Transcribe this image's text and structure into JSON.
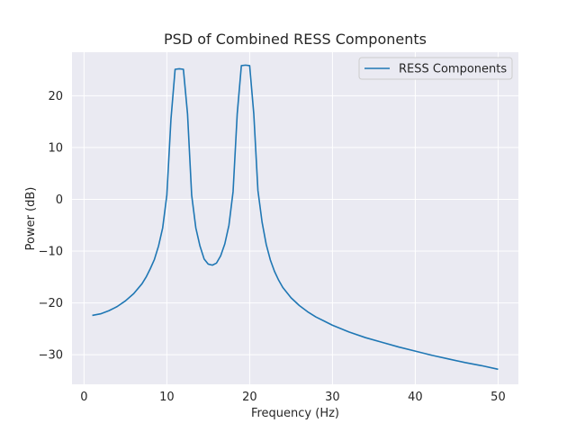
{
  "chart_data": {
    "type": "line",
    "title": "PSD of Combined RESS Components",
    "xlabel": "Frequency (Hz)",
    "ylabel": "Power (dB)",
    "xlim": [
      -1.45,
      52.45
    ],
    "ylim": [
      -35.7,
      28.4
    ],
    "xticks": [
      0,
      10,
      20,
      30,
      40,
      50
    ],
    "yticks": [
      -30,
      -20,
      -10,
      0,
      10,
      20
    ],
    "xtick_labels": [
      "0",
      "10",
      "20",
      "30",
      "40",
      "50"
    ],
    "ytick_labels": [
      "−30",
      "−20",
      "−10",
      "0",
      "10",
      "20"
    ],
    "grid": true,
    "background": "#eaeaf2",
    "legend": {
      "position": "upper right",
      "entries": [
        "RESS Components"
      ]
    },
    "series": [
      {
        "name": "RESS Components",
        "color": "#1f77b4",
        "x": [
          1,
          2,
          3,
          4,
          5,
          6,
          7,
          7.5,
          8,
          8.5,
          9,
          9.5,
          10,
          10.5,
          11,
          11.5,
          12,
          12.5,
          13,
          13.5,
          14,
          14.5,
          15,
          15.5,
          16,
          16.5,
          17,
          17.5,
          18,
          18.5,
          19,
          19.5,
          20,
          20.5,
          21,
          21.5,
          22,
          22.5,
          23,
          23.5,
          24,
          25,
          26,
          27,
          28,
          29,
          30,
          32,
          34,
          36,
          38,
          40,
          42,
          44,
          46,
          48,
          50
        ],
        "values": [
          -22.4,
          -22.1,
          -21.5,
          -20.7,
          -19.6,
          -18.2,
          -16.3,
          -15,
          -13.4,
          -11.6,
          -9,
          -5.5,
          0.8,
          15.5,
          25.1,
          25.2,
          25.1,
          16.5,
          0.8,
          -5.5,
          -9,
          -11.5,
          -12.5,
          -12.7,
          -12.3,
          -10.9,
          -8.6,
          -5,
          1.5,
          16.5,
          25.8,
          25.9,
          25.8,
          16.5,
          1.7,
          -4.4,
          -8.7,
          -11.7,
          -13.9,
          -15.6,
          -17,
          -19,
          -20.5,
          -21.7,
          -22.7,
          -23.5,
          -24.3,
          -25.6,
          -26.7,
          -27.6,
          -28.5,
          -29.3,
          -30.1,
          -30.8,
          -31.5,
          -32.1,
          -32.8
        ]
      }
    ]
  }
}
